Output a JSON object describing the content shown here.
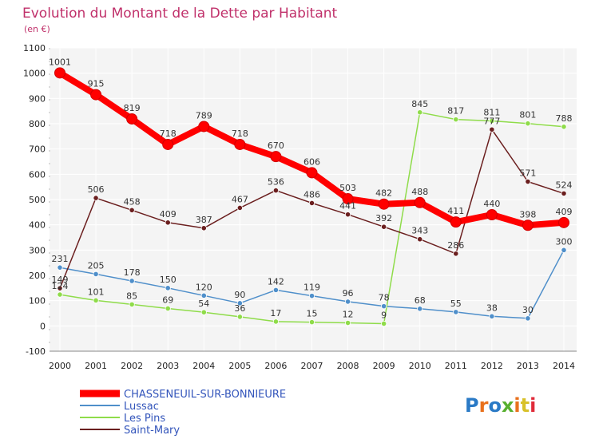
{
  "chart_data": {
    "type": "line",
    "title": "Evolution du Montant de la Dette par Habitant",
    "subtitle": "(en €)",
    "x": [
      "2000",
      "2001",
      "2002",
      "2003",
      "2004",
      "2005",
      "2006",
      "2007",
      "2008",
      "2009",
      "2010",
      "2011",
      "2012",
      "2013",
      "2014"
    ],
    "ylim": [
      -100,
      1100
    ],
    "yticks": [
      -100,
      0,
      100,
      200,
      300,
      400,
      500,
      600,
      700,
      800,
      900,
      1000,
      1100
    ],
    "grid": true,
    "legend_position": "bottom-left",
    "series": [
      {
        "name": "CHASSENEUIL-SUR-BONNIEURE",
        "color": "#ff0000",
        "values": [
          1001,
          915,
          819,
          718,
          789,
          718,
          670,
          606,
          503,
          482,
          488,
          411,
          440,
          398,
          409
        ]
      },
      {
        "name": "Lussac",
        "color": "#4f8fca",
        "values": [
          231,
          205,
          178,
          150,
          120,
          90,
          142,
          119,
          96,
          78,
          68,
          55,
          38,
          30,
          300
        ]
      },
      {
        "name": "Les Pins",
        "color": "#8fdc4a",
        "values": [
          124,
          101,
          85,
          69,
          54,
          36,
          17,
          15,
          12,
          9,
          845,
          817,
          811,
          801,
          788
        ]
      },
      {
        "name": "Saint-Mary",
        "color": "#6b1f1f",
        "values": [
          149,
          506,
          458,
          409,
          387,
          467,
          536,
          486,
          441,
          392,
          343,
          286,
          777,
          571,
          524
        ]
      }
    ]
  },
  "logo": {
    "text": "Proxiti"
  }
}
